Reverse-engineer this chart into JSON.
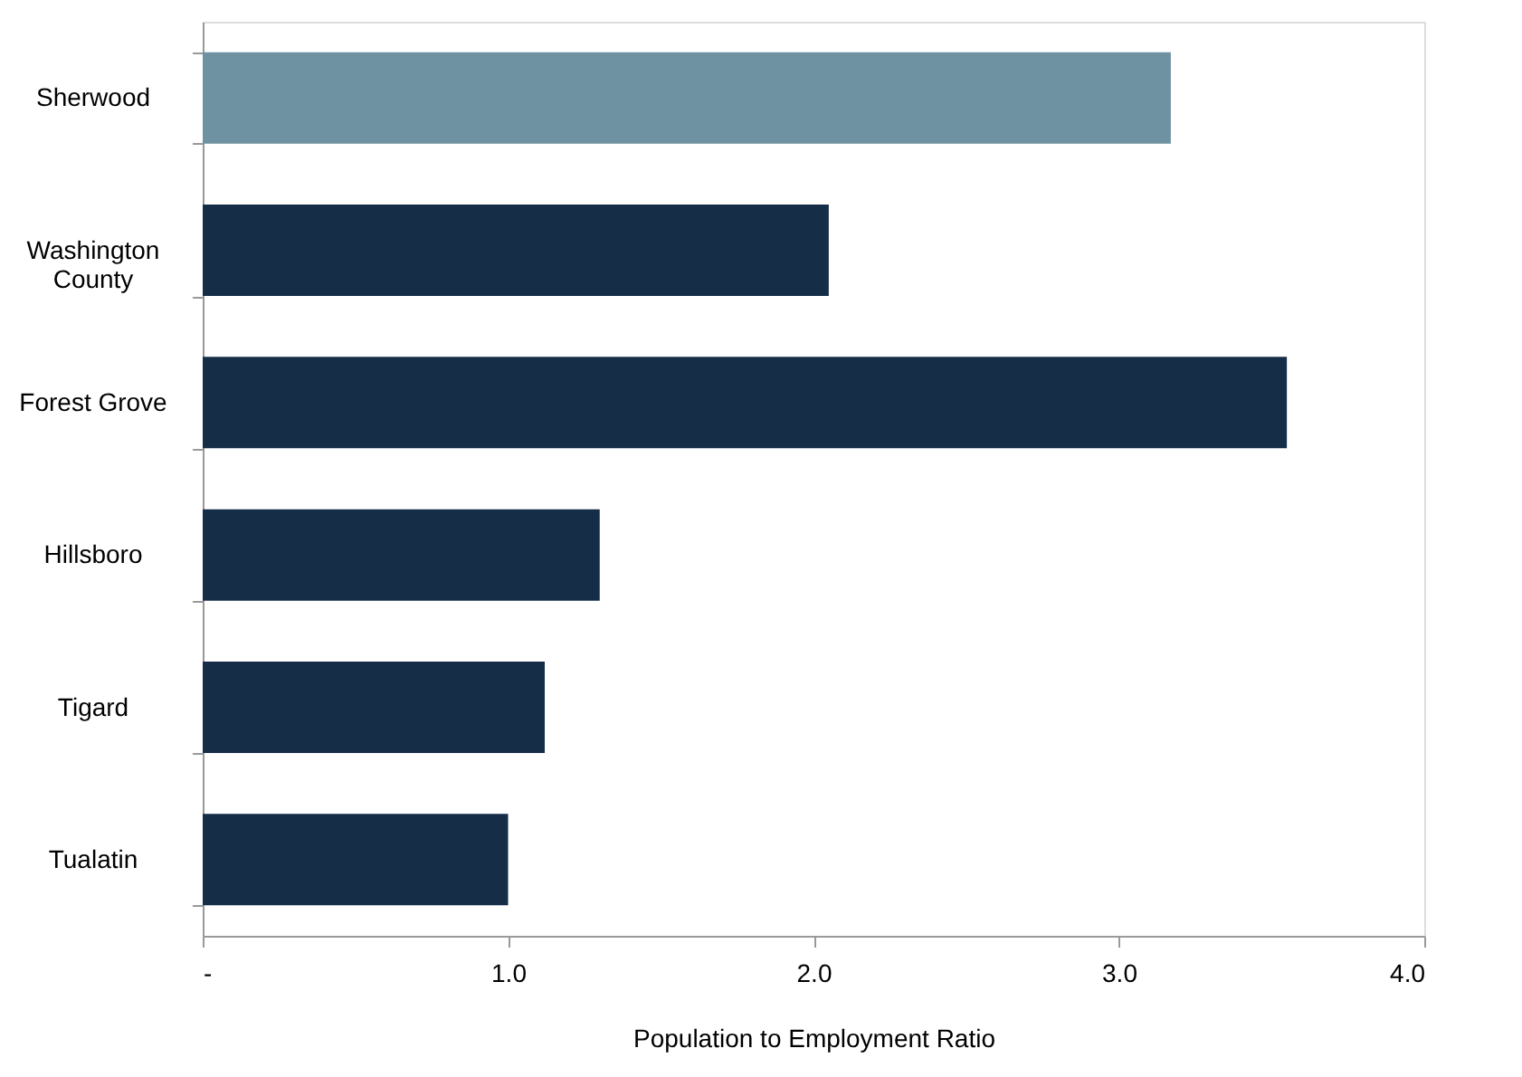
{
  "chart_data": {
    "type": "bar",
    "orientation": "horizontal",
    "xlabel": "Population to Employment Ratio",
    "categories": [
      "Sherwood",
      "Washington County",
      "Forest Grove",
      "Hillsboro",
      "Tigard",
      "Tualatin"
    ],
    "values": [
      3.17,
      2.05,
      3.55,
      1.3,
      1.12,
      1.0
    ],
    "colors": [
      "#6e92a1",
      "#162d48",
      "#162d48",
      "#162d48",
      "#162d48",
      "#162d48"
    ],
    "xlim": [
      0,
      4
    ],
    "xticks": [
      {
        "value": 0,
        "label": "-"
      },
      {
        "value": 1,
        "label": "1.0"
      },
      {
        "value": 2,
        "label": "2.0"
      },
      {
        "value": 3,
        "label": "3.0"
      },
      {
        "value": 4,
        "label": "4.0"
      }
    ],
    "grid": false,
    "legend": false
  }
}
